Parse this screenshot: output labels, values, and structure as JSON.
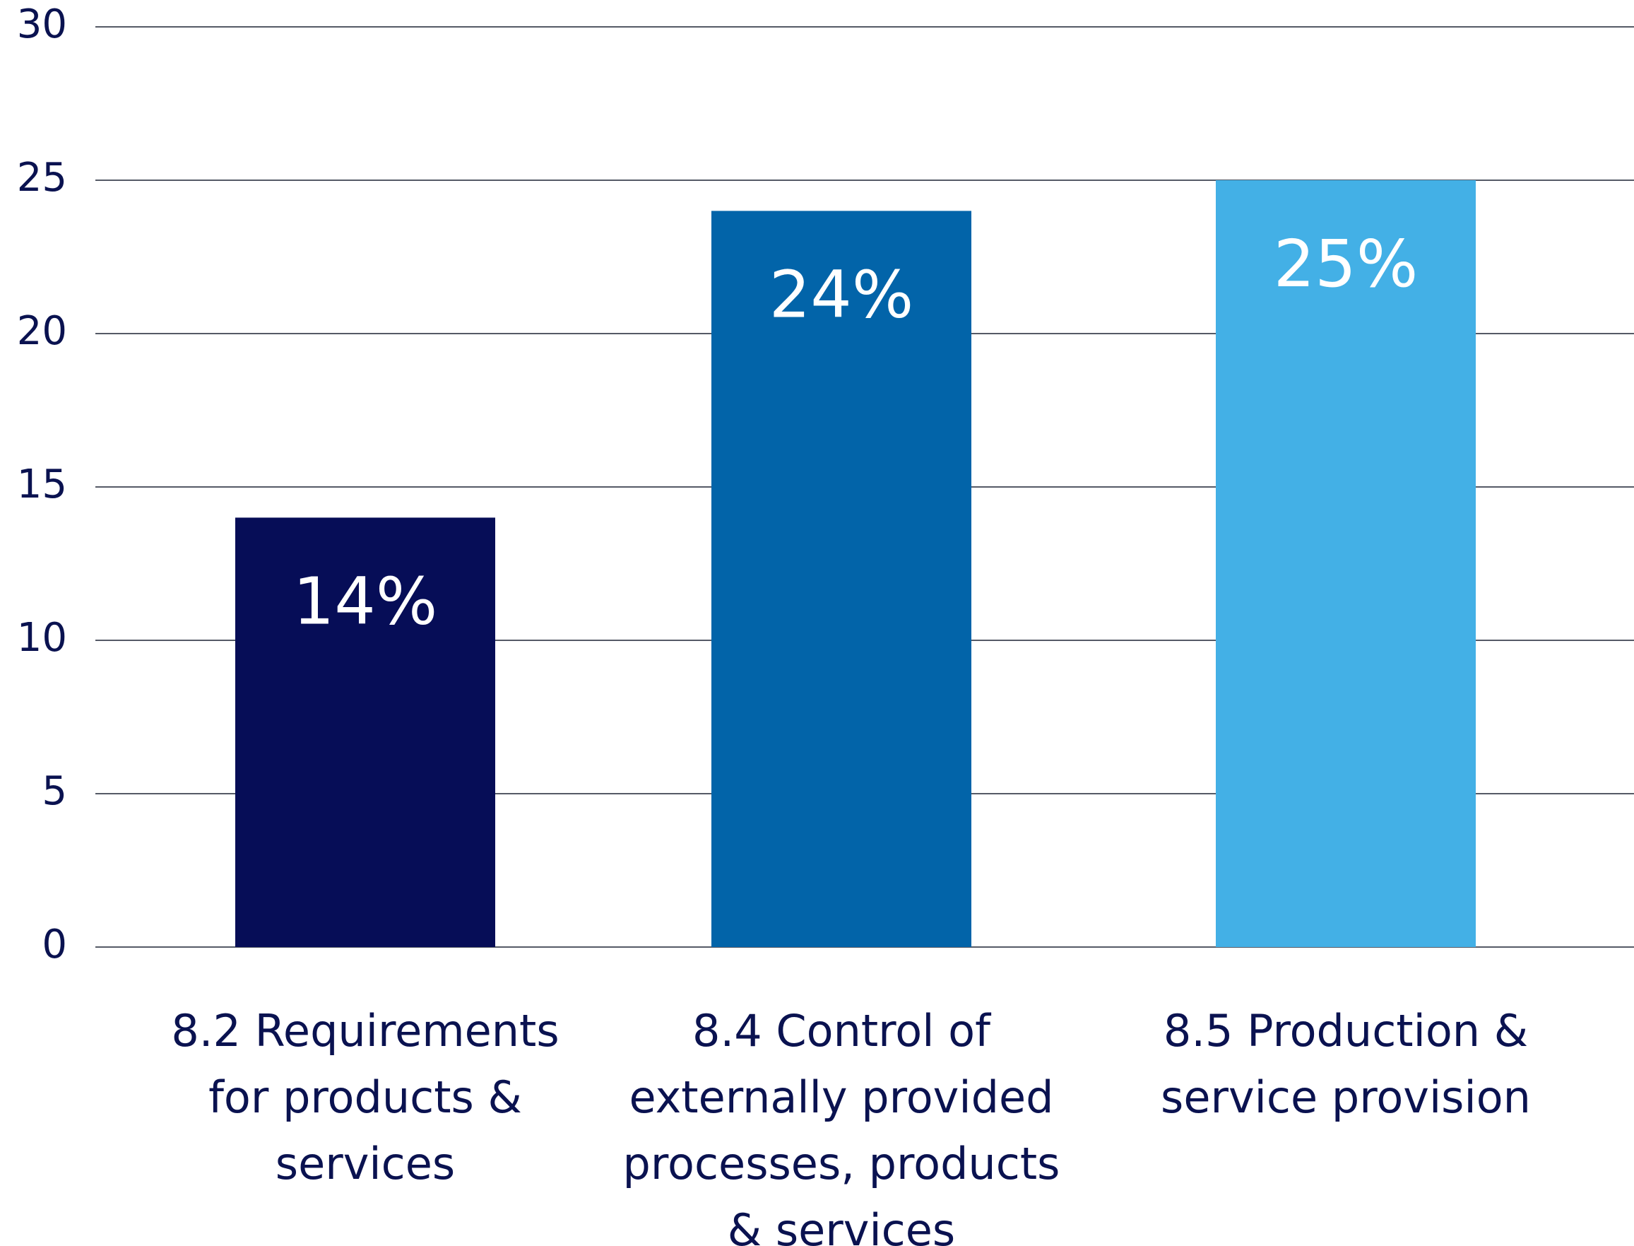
{
  "chart_data": {
    "type": "bar",
    "categories": [
      [
        "8.2 Requirements",
        "for products &",
        "services"
      ],
      [
        "8.4 Control of",
        "externally provided",
        "processes, products",
        "& services"
      ],
      [
        "8.5 Production &",
        "service provision"
      ]
    ],
    "values": [
      14,
      24,
      25
    ],
    "data_labels": [
      "14%",
      "24%",
      "25%"
    ],
    "bar_colors": [
      "#060d57",
      "#0264a9",
      "#43b0e6"
    ],
    "ylim": [
      0,
      30
    ],
    "yticks": [
      "0",
      "5",
      "10",
      "15",
      "20",
      "25",
      "30"
    ],
    "grid": true,
    "legend": "none",
    "title": "",
    "xlabel": "",
    "ylabel": ""
  }
}
